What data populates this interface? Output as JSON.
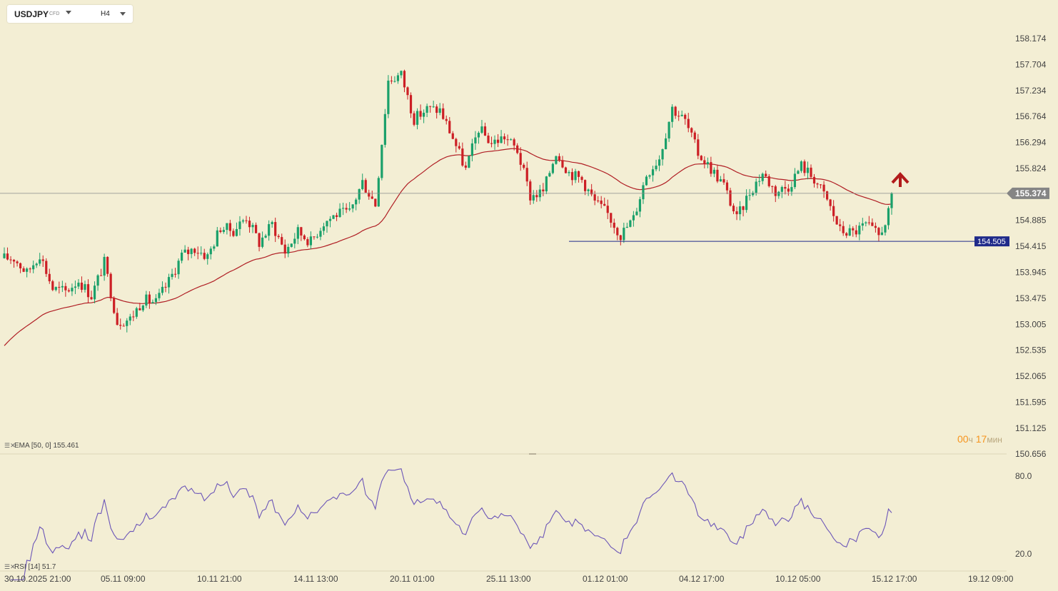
{
  "header": {
    "symbol": "USDJPY",
    "instrument_type": "CFD",
    "timeframe": "H4"
  },
  "indicators": {
    "ema_label": "EMA [50, 0] 155.461",
    "rsi_label": "RSI [14] 51.7"
  },
  "timer": {
    "hours": "00",
    "hours_unit": "ч",
    "minutes": "17",
    "minutes_unit": "мин"
  },
  "colors": {
    "background": "#f3eed4",
    "bull": "#1aa06a",
    "bear": "#cc1f25",
    "ema": "#b01e24",
    "rsi": "#6c56b8",
    "support_line": "#1f2a8a",
    "current_price_badge": "#858585",
    "arrow": "#b21b1b"
  },
  "chart_data": {
    "type": "candlestick",
    "price_axis": {
      "ticks": [
        "158.174",
        "157.704",
        "157.234",
        "156.764",
        "156.294",
        "155.824",
        "155.374",
        "154.885",
        "154.415",
        "153.945",
        "153.475",
        "153.005",
        "152.535",
        "152.065",
        "151.595",
        "151.125",
        "150.656"
      ]
    },
    "time_axis": {
      "ticks": [
        "30.10.2025 21:00",
        "05.11 09:00",
        "10.11 21:00",
        "14.11 13:00",
        "20.11 01:00",
        "25.11 13:00",
        "01.12 01:00",
        "04.12 17:00",
        "10.12 05:00",
        "15.12 17:00",
        "19.12 09:00"
      ]
    },
    "current_price": "155.374",
    "support_level": "154.505",
    "signal": "up-arrow",
    "close_path": [
      154.2,
      154.2,
      153.93,
      154.28,
      153.65,
      153.6,
      153.8,
      153.52,
      154.12,
      153.05,
      153.1,
      153.45,
      153.4,
      153.78,
      154.25,
      154.38,
      154.23,
      154.76,
      154.7,
      154.95,
      154.48,
      154.82,
      154.32,
      154.68,
      154.5,
      154.85,
      155.0,
      155.02,
      155.58,
      155.18,
      157.42,
      157.52,
      156.72,
      156.9,
      156.88,
      156.38,
      155.8,
      156.55,
      156.28,
      156.4,
      156.15,
      155.32,
      155.4,
      156.13,
      155.75,
      155.62,
      155.22,
      155.0,
      154.62,
      154.92,
      155.72,
      156.02,
      156.92,
      156.68,
      156.1,
      155.82,
      155.52,
      154.91,
      155.4,
      155.74,
      155.4,
      155.5,
      155.88,
      155.64,
      155.25,
      154.7,
      154.66,
      154.8,
      154.6,
      155.14
    ],
    "ema": {
      "period": 50,
      "shift": 0,
      "value": "155.461"
    },
    "rsi_pane": {
      "period": 14,
      "value": 51.7,
      "ticks": [
        "80.0",
        "20.0"
      ]
    }
  }
}
